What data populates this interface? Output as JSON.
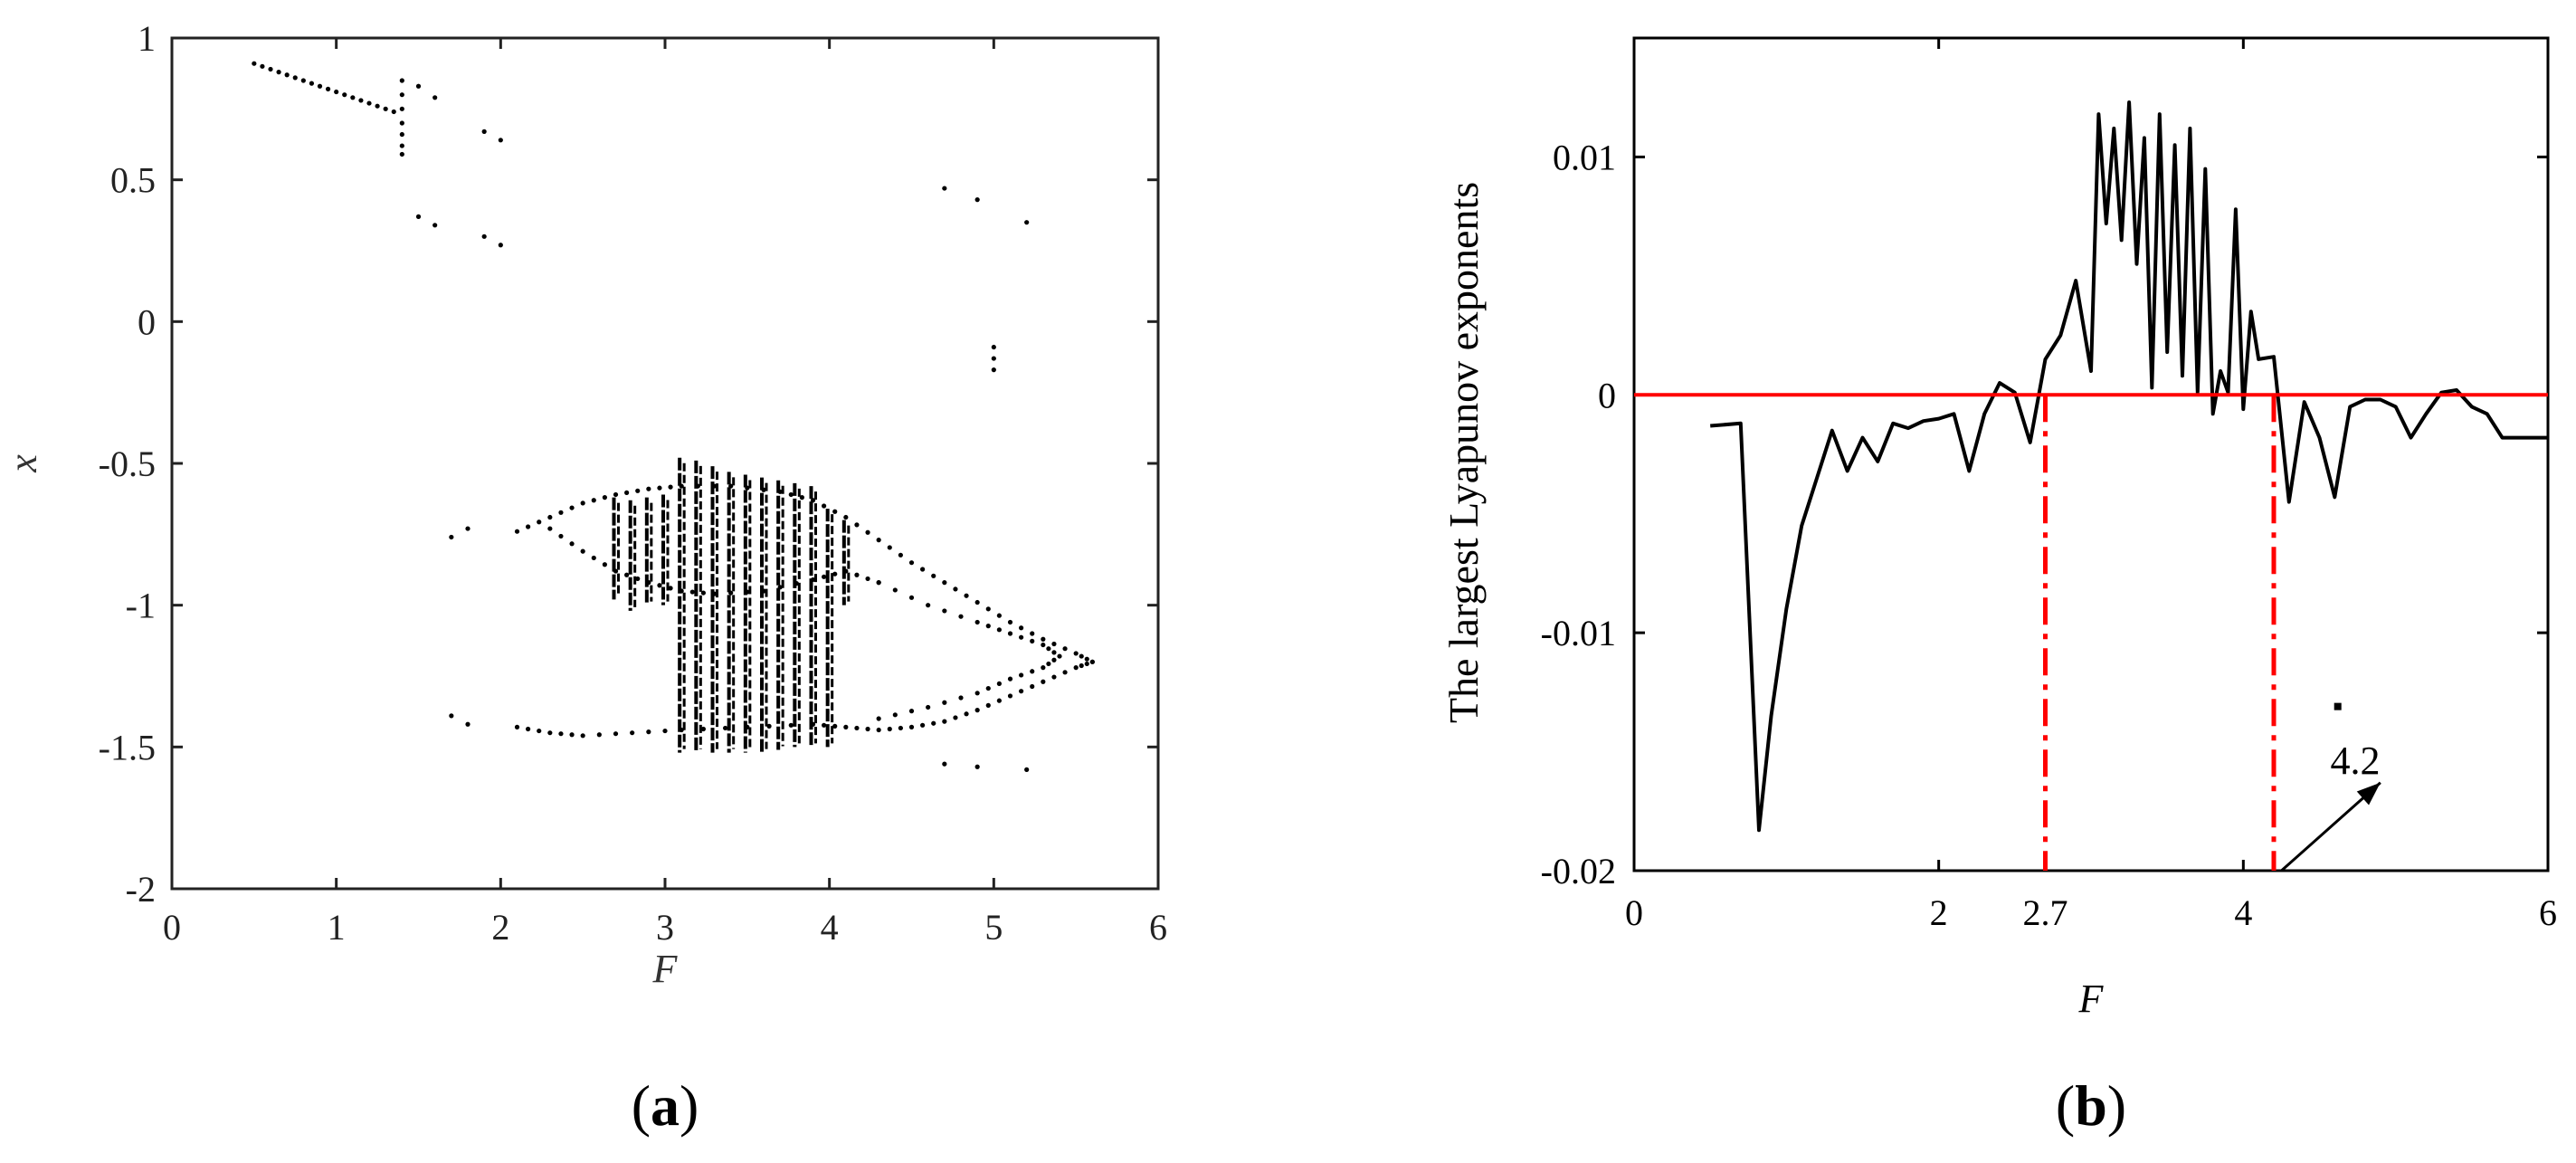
{
  "chart_data": [
    {
      "type": "scatter",
      "panel_label": "(a)",
      "panel_letter": "a",
      "xlabel": "F",
      "ylabel": "x",
      "xlim": [
        0,
        6
      ],
      "ylim": [
        -2,
        1
      ],
      "xticks": [
        "0",
        "1",
        "2",
        "3",
        "4",
        "5",
        "6"
      ],
      "yticks": [
        "1",
        "0.5",
        "0",
        "-0.5",
        "-1",
        "-1.5",
        "-2"
      ],
      "grid": false,
      "colors": {
        "points": "#000000",
        "axes": "#222222"
      },
      "upper_line": {
        "x_start": 0.5,
        "x_end": 1.35,
        "y_start": 0.91,
        "y_end": 0.74,
        "step": 0.05
      },
      "isolated_points": [
        [
          1.4,
          0.85
        ],
        [
          1.4,
          0.8
        ],
        [
          1.4,
          0.75
        ],
        [
          1.4,
          0.7
        ],
        [
          1.4,
          0.66
        ],
        [
          1.4,
          0.62
        ],
        [
          1.4,
          0.59
        ],
        [
          1.5,
          0.83
        ],
        [
          1.6,
          0.79
        ],
        [
          1.5,
          0.37
        ],
        [
          1.6,
          0.34
        ],
        [
          1.9,
          0.67
        ],
        [
          2.0,
          0.64
        ],
        [
          1.9,
          0.3
        ],
        [
          2.0,
          0.27
        ],
        [
          4.7,
          0.47
        ],
        [
          4.9,
          0.43
        ],
        [
          5.2,
          0.35
        ],
        [
          5.0,
          -0.09
        ],
        [
          5.0,
          -0.13
        ],
        [
          5.0,
          -0.17
        ],
        [
          1.7,
          -0.76
        ],
        [
          1.8,
          -0.73
        ],
        [
          1.7,
          -1.39
        ],
        [
          1.8,
          -1.42
        ],
        [
          4.7,
          -1.56
        ],
        [
          4.9,
          -1.57
        ],
        [
          5.2,
          -1.58
        ]
      ],
      "curves": [
        {
          "name": "upper-outer",
          "points": [
            [
              2.1,
              -0.74
            ],
            [
              2.3,
              -0.69
            ],
            [
              2.5,
              -0.64
            ],
            [
              2.7,
              -0.61
            ],
            [
              2.9,
              -0.59
            ],
            [
              3.1,
              -0.58
            ],
            [
              3.4,
              -0.58
            ],
            [
              3.7,
              -0.6
            ],
            [
              3.9,
              -0.63
            ],
            [
              4.1,
              -0.69
            ],
            [
              4.3,
              -0.77
            ],
            [
              4.5,
              -0.85
            ],
            [
              4.7,
              -0.92
            ],
            [
              4.9,
              -0.99
            ],
            [
              5.1,
              -1.06
            ],
            [
              5.3,
              -1.12
            ],
            [
              5.5,
              -1.17
            ],
            [
              5.6,
              -1.2
            ]
          ]
        },
        {
          "name": "upper-inner",
          "points": [
            [
              2.3,
              -0.73
            ],
            [
              2.5,
              -0.81
            ],
            [
              2.7,
              -0.88
            ],
            [
              2.9,
              -0.92
            ],
            [
              3.1,
              -0.95
            ],
            [
              3.3,
              -0.96
            ],
            [
              3.6,
              -0.95
            ],
            [
              3.9,
              -0.91
            ],
            [
              4.1,
              -0.88
            ],
            [
              4.3,
              -0.92
            ]
          ]
        },
        {
          "name": "lower-outer",
          "points": [
            [
              2.1,
              -1.43
            ],
            [
              2.3,
              -1.45
            ],
            [
              2.5,
              -1.46
            ],
            [
              2.8,
              -1.45
            ],
            [
              3.1,
              -1.44
            ],
            [
              3.5,
              -1.43
            ],
            [
              3.9,
              -1.42
            ],
            [
              4.1,
              -1.43
            ],
            [
              4.3,
              -1.44
            ],
            [
              4.5,
              -1.43
            ],
            [
              4.7,
              -1.41
            ],
            [
              4.9,
              -1.37
            ],
            [
              5.1,
              -1.32
            ],
            [
              5.3,
              -1.27
            ],
            [
              5.5,
              -1.22
            ],
            [
              5.6,
              -1.2
            ]
          ]
        },
        {
          "name": "inner-return",
          "points": [
            [
              4.3,
              -0.92
            ],
            [
              4.6,
              -1.0
            ],
            [
              4.9,
              -1.06
            ],
            [
              5.1,
              -1.1
            ],
            [
              5.3,
              -1.14
            ],
            [
              5.4,
              -1.18
            ],
            [
              5.3,
              -1.22
            ],
            [
              5.1,
              -1.26
            ],
            [
              4.9,
              -1.31
            ],
            [
              4.6,
              -1.36
            ],
            [
              4.3,
              -1.4
            ]
          ]
        }
      ],
      "columns": [
        {
          "x": 2.7,
          "y_top": -0.62,
          "y_bottom": -0.98
        },
        {
          "x": 2.8,
          "y_top": -0.63,
          "y_bottom": -1.02
        },
        {
          "x": 2.9,
          "y_top": -0.62,
          "y_bottom": -1.0
        },
        {
          "x": 3.0,
          "y_top": -0.61,
          "y_bottom": -1.0
        },
        {
          "x": 3.1,
          "y_top": -0.48,
          "y_bottom": -1.52
        },
        {
          "x": 3.2,
          "y_top": -0.49,
          "y_bottom": -1.52
        },
        {
          "x": 3.3,
          "y_top": -0.51,
          "y_bottom": -1.52
        },
        {
          "x": 3.4,
          "y_top": -0.53,
          "y_bottom": -1.52
        },
        {
          "x": 3.5,
          "y_top": -0.54,
          "y_bottom": -1.52
        },
        {
          "x": 3.6,
          "y_top": -0.55,
          "y_bottom": -1.52
        },
        {
          "x": 3.7,
          "y_top": -0.56,
          "y_bottom": -1.51
        },
        {
          "x": 3.8,
          "y_top": -0.57,
          "y_bottom": -1.5
        },
        {
          "x": 3.9,
          "y_top": -0.58,
          "y_bottom": -1.5
        },
        {
          "x": 4.0,
          "y_top": -0.66,
          "y_bottom": -1.5
        },
        {
          "x": 4.1,
          "y_top": -0.7,
          "y_bottom": -1.0
        }
      ]
    },
    {
      "type": "line",
      "panel_label": "(b)",
      "panel_letter": "b",
      "xlabel": "F",
      "ylabel": "The largest Lyapunov exponents",
      "xlim": [
        0,
        6
      ],
      "ylim": [
        -0.02,
        0.015
      ],
      "xticks": [
        "0",
        "2",
        "4",
        "6"
      ],
      "yticks": [
        "0.01",
        "0",
        "-0.01",
        "-0.02"
      ],
      "extra_xtick": "2.7",
      "annotation": "4.2",
      "grid": false,
      "colors": {
        "series": "#000000",
        "zero_line": "#ff0000",
        "markers": "#ff0000"
      },
      "zero_line_y": 0,
      "vertical_markers": [
        2.7,
        4.2
      ],
      "arrow": {
        "from": [
          4.25,
          -0.02
        ],
        "to": [
          4.9,
          -0.0163
        ]
      },
      "small_mark": [
        4.62,
        -0.0131
      ],
      "series": [
        {
          "x": [
            0.5,
            0.7,
            0.82,
            0.9,
            1.0,
            1.1,
            1.2,
            1.3,
            1.4,
            1.5,
            1.6,
            1.7,
            1.8,
            1.9,
            2.0,
            2.1,
            2.2,
            2.3,
            2.4,
            2.5,
            2.6,
            2.7,
            2.8,
            2.9,
            3.0,
            3.05,
            3.1,
            3.15,
            3.2,
            3.25,
            3.3,
            3.35,
            3.4,
            3.45,
            3.5,
            3.55,
            3.6,
            3.65,
            3.7,
            3.75,
            3.8,
            3.85,
            3.9,
            3.95,
            4.0,
            4.05,
            4.1,
            4.2,
            4.3,
            4.4,
            4.5,
            4.6,
            4.7,
            4.8,
            4.9,
            5.0,
            5.1,
            5.2,
            5.3,
            5.4,
            5.5,
            5.6,
            5.7,
            5.8,
            6.0
          ],
          "y": [
            -0.0013,
            -0.0012,
            -0.0183,
            -0.0135,
            -0.009,
            -0.0055,
            -0.0035,
            -0.0015,
            -0.0032,
            -0.0018,
            -0.0028,
            -0.0012,
            -0.0014,
            -0.0011,
            -0.001,
            -0.0008,
            -0.0032,
            -0.0008,
            0.0005,
            0.0001,
            -0.002,
            0.0015,
            0.0025,
            0.0048,
            0.001,
            0.0118,
            0.0072,
            0.0112,
            0.0065,
            0.0123,
            0.0055,
            0.0108,
            0.0003,
            0.0118,
            0.0018,
            0.0105,
            0.0008,
            0.0112,
            0.0001,
            0.0095,
            -0.0008,
            0.001,
            0.0001,
            0.0078,
            -0.0006,
            0.0035,
            0.0015,
            0.0016,
            -0.0045,
            -0.0003,
            -0.0018,
            -0.0043,
            -0.0005,
            -0.0002,
            -0.0002,
            -0.0005,
            -0.0018,
            -0.0008,
            0.0001,
            0.0002,
            -0.0005,
            -0.0008,
            -0.0018,
            -0.0018,
            -0.0018
          ]
        }
      ]
    }
  ]
}
